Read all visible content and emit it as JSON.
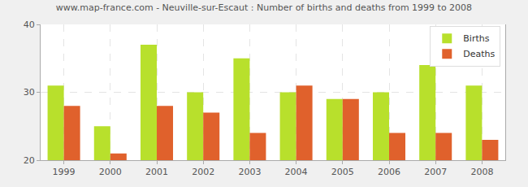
{
  "chart_data": {
    "type": "bar",
    "title": "www.map-france.com - Neuville-sur-Escaut : Number of births and deaths from 1999 to 2008",
    "categories": [
      "1999",
      "2000",
      "2001",
      "2002",
      "2003",
      "2004",
      "2005",
      "2006",
      "2007",
      "2008"
    ],
    "series": [
      {
        "name": "Births",
        "color": "#b8e02c",
        "values": [
          31,
          25,
          37,
          30,
          35,
          30,
          29,
          30,
          34,
          31
        ]
      },
      {
        "name": "Deaths",
        "color": "#e0612c",
        "values": [
          28,
          21,
          28,
          27,
          24,
          31,
          29,
          24,
          24,
          23
        ]
      }
    ],
    "ylim": [
      20,
      40
    ],
    "yticks": [
      20,
      30,
      40
    ],
    "grid": true,
    "legend": "upper right"
  }
}
